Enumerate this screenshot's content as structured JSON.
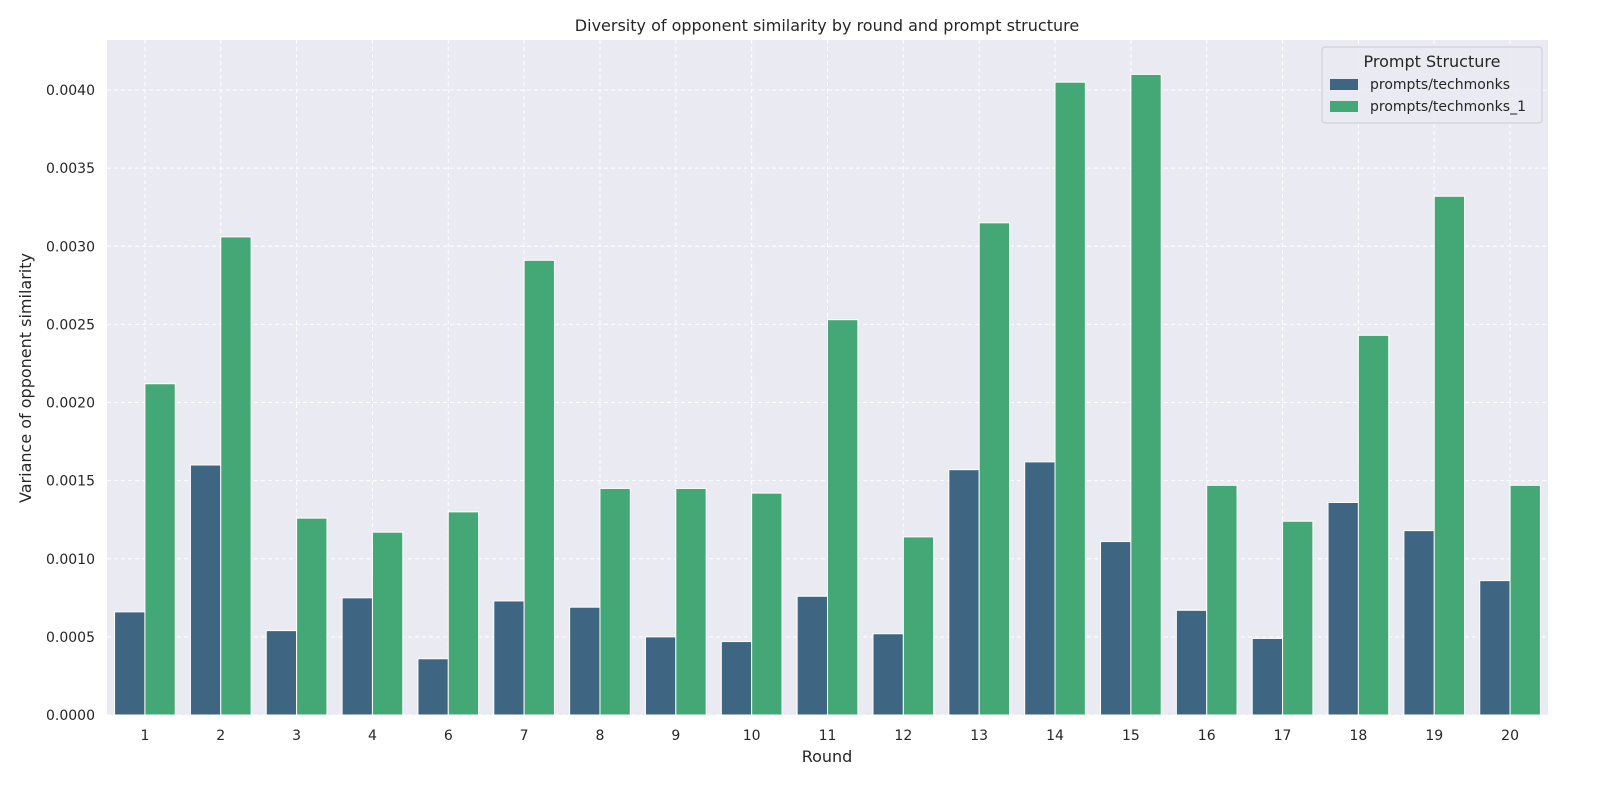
{
  "chart_data": {
    "type": "bar",
    "title": "Diversity of opponent similarity by round and prompt structure",
    "xlabel": "Round",
    "ylabel": "Variance of opponent similarity",
    "categories": [
      "1",
      "2",
      "3",
      "4",
      "6",
      "7",
      "8",
      "9",
      "10",
      "11",
      "12",
      "13",
      "14",
      "15",
      "16",
      "17",
      "18",
      "19",
      "20"
    ],
    "series": [
      {
        "name": "prompts/techmonks",
        "color": "#3e6683",
        "values": [
          0.00066,
          0.0016,
          0.00054,
          0.00075,
          0.00036,
          0.00073,
          0.00069,
          0.0005,
          0.00047,
          0.00076,
          0.00052,
          0.00157,
          0.00162,
          0.00111,
          0.00067,
          0.00049,
          0.00136,
          0.00118,
          0.00086
        ]
      },
      {
        "name": "prompts/techmonks_1",
        "color": "#44a776",
        "values": [
          0.00212,
          0.00306,
          0.00126,
          0.00117,
          0.0013,
          0.00291,
          0.00145,
          0.00145,
          0.00142,
          0.00253,
          0.00114,
          0.00315,
          0.00405,
          0.0041,
          0.00147,
          0.00124,
          0.00243,
          0.00332,
          0.00147
        ]
      }
    ],
    "yticks": [
      "0.0000",
      "0.0005",
      "0.0010",
      "0.0015",
      "0.0020",
      "0.0025",
      "0.0030",
      "0.0035",
      "0.0040"
    ],
    "ylim": [
      0,
      0.00432
    ],
    "grid": true,
    "legend": {
      "title": "Prompt Structure",
      "position": "top-right"
    },
    "background_color": "#eaeaf2",
    "grid_color": "#ffffff"
  }
}
